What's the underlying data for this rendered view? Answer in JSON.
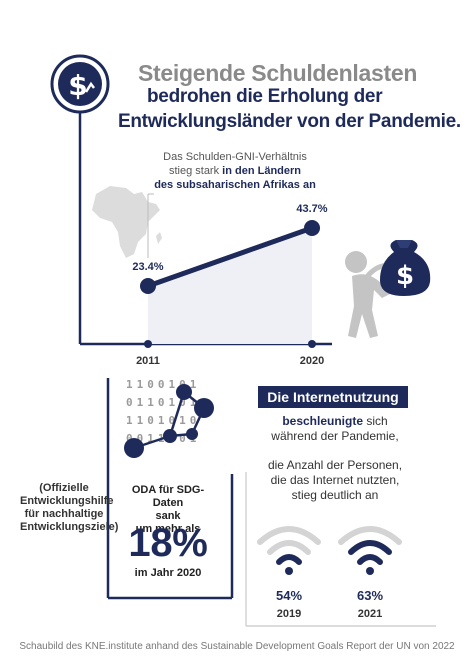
{
  "title": {
    "line1": "Steigende Schuldenlasten",
    "line2": "bedrohen die Erholung der",
    "line3": "Entwicklungsländer von der Pandemie."
  },
  "debt_annotation": {
    "plain": "Das Schulden-GNI-Verhältnis",
    "plain2": "stieg stark",
    "bold2": "in den Ländern",
    "bold3": "des subsaharischen Afrikas an"
  },
  "chart_data": {
    "type": "line",
    "x": [
      "2011",
      "2020"
    ],
    "series": [
      {
        "values": [
          23.4,
          43.7
        ]
      }
    ],
    "data_labels": [
      "23.4%",
      "43.7%"
    ],
    "tick_labels": [
      "2011",
      "2020"
    ],
    "colors": {
      "line": "#1e2a5a",
      "axis": "#1e2a5a",
      "area": "#eef0f6"
    }
  },
  "oda": {
    "side_text": "(Offizielle Entwicklungshilfe für nachhaltige Entwicklungsziele)",
    "box_line1": "ODA für SDG-Daten",
    "box_line2": "sank",
    "box_line3": "um mehr als",
    "percent": "18%",
    "year_text": "im Jahr 2020",
    "binary_rows": [
      "1100101",
      "0110101",
      "1101010",
      "0011001"
    ]
  },
  "internet": {
    "title": "Die Internetnutzung",
    "bold1": "beschleunigte",
    "text1a": "sich",
    "text1b": "während der Pandemie,",
    "text2a": "die Anzahl der Personen,",
    "text2b": "die das Internet nutzten,",
    "text2c": "stieg deutlich an",
    "items": [
      {
        "percent": "54%",
        "year": "2019"
      },
      {
        "percent": "63%",
        "year": "2021"
      }
    ]
  },
  "icons": {
    "top": "dollar-coin-icon",
    "map": "africa-map-icon",
    "carrier": "person-carrying-money-bag-icon",
    "data": "data-network-icon",
    "wifi": "wifi-icon"
  },
  "colors": {
    "navy": "#1e2a5a",
    "gray": "#8a8a8a",
    "light": "#d9d9d9"
  },
  "footer": "Schaubild des KNE.institute anhand des Sustainable Development Goals Report der UN von 2022"
}
